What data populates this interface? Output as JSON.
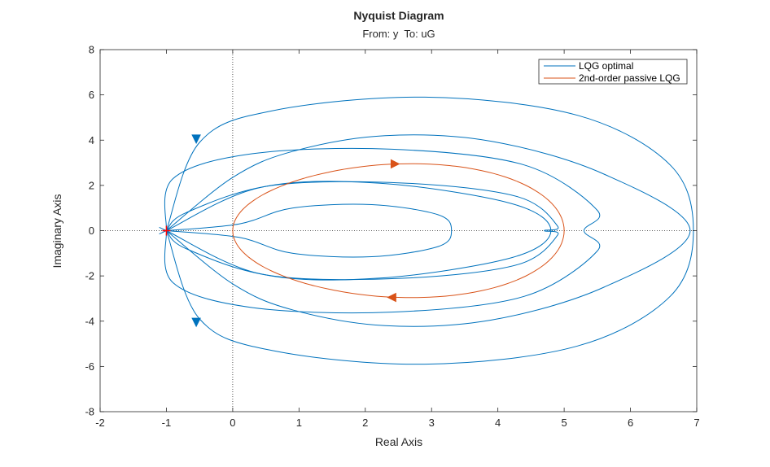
{
  "chart_data": {
    "type": "line",
    "title": "Nyquist Diagram",
    "subtitle": "From: y  To: uG",
    "xlabel": "Real Axis",
    "ylabel": "Imaginary Axis",
    "xlim": [
      -2,
      7
    ],
    "ylim": [
      -8,
      8
    ],
    "xticks": [
      "-2",
      "-1",
      "0",
      "1",
      "2",
      "3",
      "4",
      "5",
      "6",
      "7"
    ],
    "yticks": [
      "-8",
      "-6",
      "-4",
      "-2",
      "0",
      "2",
      "4",
      "6",
      "8"
    ],
    "grid": false,
    "zero_lines": true,
    "critical_point": {
      "x": -1,
      "y": 0,
      "color": "#ff0000"
    },
    "legend_position": "top-right",
    "series": [
      {
        "name": "LQG optimal",
        "color": "#0072bd",
        "loops": [
          {
            "cx": 2.8,
            "rx": 4.1,
            "ry": 4.2,
            "left_x": -1.3,
            "peak_x": 2.8,
            "top": [
              [
                0.0,
                2.35
              ],
              [
                0.9,
                3.5
              ],
              [
                2.3,
                4.2
              ],
              [
                3.9,
                3.95
              ],
              [
                5.6,
                2.5
              ],
              [
                6.9,
                0.0
              ]
            ]
          },
          {
            "cx": 2.9,
            "rx": 3.9,
            "ry": 5.9,
            "left_x": -1.3,
            "top": [
              [
                -0.5,
                3.9
              ],
              [
                0.6,
                5.3
              ],
              [
                2.9,
                5.9
              ],
              [
                5.2,
                5.1
              ],
              [
                6.6,
                2.9
              ],
              [
                6.95,
                0.0
              ]
            ]
          },
          {
            "cx": 2.6,
            "rx": 2.9,
            "ry": 3.6,
            "left_x": -0.9,
            "top": [
              [
                -0.9,
                2.3
              ],
              [
                0.3,
                3.4
              ],
              [
                2.4,
                3.6
              ],
              [
                4.4,
                2.9
              ],
              [
                5.5,
                0.9
              ],
              [
                5.3,
                0.0
              ]
            ]
          },
          {
            "cx": 2.4,
            "rx": 2.5,
            "ry": 2.1,
            "left_x": -0.7,
            "top": [
              [
                -0.7,
                0.8
              ],
              [
                0.6,
                2.0
              ],
              [
                2.6,
                2.1
              ],
              [
                4.3,
                1.5
              ],
              [
                4.9,
                0.2
              ],
              [
                4.7,
                0.0
              ]
            ]
          },
          {
            "cx": 2.0,
            "rx": 1.9,
            "ry": 1.1,
            "left_x": 0.1,
            "top": [
              [
                0.1,
                0.3
              ],
              [
                0.9,
                1.0
              ],
              [
                2.1,
                1.15
              ],
              [
                3.1,
                0.7
              ],
              [
                3.3,
                0.0
              ]
            ]
          },
          {
            "cx": 2.0,
            "rx": 2.8,
            "ry": 2.1,
            "left_x": -1.0,
            "top": [
              [
                -1.0,
                0.0
              ],
              [
                0.4,
                1.9
              ],
              [
                2.2,
                2.1
              ],
              [
                4.2,
                1.2
              ],
              [
                4.8,
                0.0
              ]
            ]
          }
        ],
        "arrows": [
          {
            "x": -0.55,
            "y": 4.05,
            "direction": "down"
          },
          {
            "x": -0.55,
            "y": -4.05,
            "direction": "down"
          }
        ]
      },
      {
        "name": "2nd-order passive LQG",
        "color": "#d95319",
        "loop": {
          "cx": 2.5,
          "ry": 2.95,
          "left_x": 0.0,
          "right_x": 5.0
        },
        "arrows": [
          {
            "x": 2.45,
            "y": 2.95,
            "direction": "right"
          },
          {
            "x": 2.4,
            "y": -2.95,
            "direction": "left"
          }
        ]
      }
    ]
  }
}
